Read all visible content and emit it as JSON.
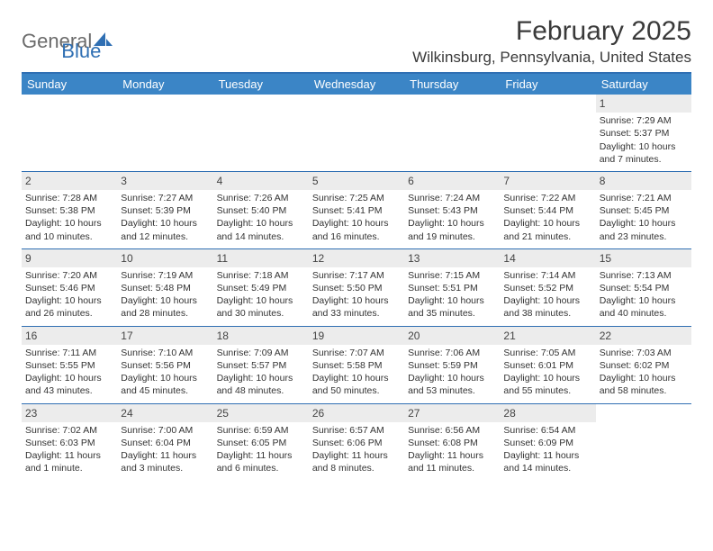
{
  "logo": {
    "part1": "General",
    "part2": "Blue"
  },
  "title": "February 2025",
  "location": "Wilkinsburg, Pennsylvania, United States",
  "colors": {
    "header_bar": "#3b85c6",
    "rule": "#2f6fb3",
    "daynum_bg": "#ececec",
    "text": "#333333",
    "logo_gray": "#6b6b6b",
    "logo_blue": "#2f6fb3"
  },
  "day_headers": [
    "Sunday",
    "Monday",
    "Tuesday",
    "Wednesday",
    "Thursday",
    "Friday",
    "Saturday"
  ],
  "weeks": [
    [
      {
        "empty": true
      },
      {
        "empty": true
      },
      {
        "empty": true
      },
      {
        "empty": true
      },
      {
        "empty": true
      },
      {
        "empty": true
      },
      {
        "num": "1",
        "sunrise": "Sunrise: 7:29 AM",
        "sunset": "Sunset: 5:37 PM",
        "day1": "Daylight: 10 hours",
        "day2": "and 7 minutes."
      }
    ],
    [
      {
        "num": "2",
        "sunrise": "Sunrise: 7:28 AM",
        "sunset": "Sunset: 5:38 PM",
        "day1": "Daylight: 10 hours",
        "day2": "and 10 minutes."
      },
      {
        "num": "3",
        "sunrise": "Sunrise: 7:27 AM",
        "sunset": "Sunset: 5:39 PM",
        "day1": "Daylight: 10 hours",
        "day2": "and 12 minutes."
      },
      {
        "num": "4",
        "sunrise": "Sunrise: 7:26 AM",
        "sunset": "Sunset: 5:40 PM",
        "day1": "Daylight: 10 hours",
        "day2": "and 14 minutes."
      },
      {
        "num": "5",
        "sunrise": "Sunrise: 7:25 AM",
        "sunset": "Sunset: 5:41 PM",
        "day1": "Daylight: 10 hours",
        "day2": "and 16 minutes."
      },
      {
        "num": "6",
        "sunrise": "Sunrise: 7:24 AM",
        "sunset": "Sunset: 5:43 PM",
        "day1": "Daylight: 10 hours",
        "day2": "and 19 minutes."
      },
      {
        "num": "7",
        "sunrise": "Sunrise: 7:22 AM",
        "sunset": "Sunset: 5:44 PM",
        "day1": "Daylight: 10 hours",
        "day2": "and 21 minutes."
      },
      {
        "num": "8",
        "sunrise": "Sunrise: 7:21 AM",
        "sunset": "Sunset: 5:45 PM",
        "day1": "Daylight: 10 hours",
        "day2": "and 23 minutes."
      }
    ],
    [
      {
        "num": "9",
        "sunrise": "Sunrise: 7:20 AM",
        "sunset": "Sunset: 5:46 PM",
        "day1": "Daylight: 10 hours",
        "day2": "and 26 minutes."
      },
      {
        "num": "10",
        "sunrise": "Sunrise: 7:19 AM",
        "sunset": "Sunset: 5:48 PM",
        "day1": "Daylight: 10 hours",
        "day2": "and 28 minutes."
      },
      {
        "num": "11",
        "sunrise": "Sunrise: 7:18 AM",
        "sunset": "Sunset: 5:49 PM",
        "day1": "Daylight: 10 hours",
        "day2": "and 30 minutes."
      },
      {
        "num": "12",
        "sunrise": "Sunrise: 7:17 AM",
        "sunset": "Sunset: 5:50 PM",
        "day1": "Daylight: 10 hours",
        "day2": "and 33 minutes."
      },
      {
        "num": "13",
        "sunrise": "Sunrise: 7:15 AM",
        "sunset": "Sunset: 5:51 PM",
        "day1": "Daylight: 10 hours",
        "day2": "and 35 minutes."
      },
      {
        "num": "14",
        "sunrise": "Sunrise: 7:14 AM",
        "sunset": "Sunset: 5:52 PM",
        "day1": "Daylight: 10 hours",
        "day2": "and 38 minutes."
      },
      {
        "num": "15",
        "sunrise": "Sunrise: 7:13 AM",
        "sunset": "Sunset: 5:54 PM",
        "day1": "Daylight: 10 hours",
        "day2": "and 40 minutes."
      }
    ],
    [
      {
        "num": "16",
        "sunrise": "Sunrise: 7:11 AM",
        "sunset": "Sunset: 5:55 PM",
        "day1": "Daylight: 10 hours",
        "day2": "and 43 minutes."
      },
      {
        "num": "17",
        "sunrise": "Sunrise: 7:10 AM",
        "sunset": "Sunset: 5:56 PM",
        "day1": "Daylight: 10 hours",
        "day2": "and 45 minutes."
      },
      {
        "num": "18",
        "sunrise": "Sunrise: 7:09 AM",
        "sunset": "Sunset: 5:57 PM",
        "day1": "Daylight: 10 hours",
        "day2": "and 48 minutes."
      },
      {
        "num": "19",
        "sunrise": "Sunrise: 7:07 AM",
        "sunset": "Sunset: 5:58 PM",
        "day1": "Daylight: 10 hours",
        "day2": "and 50 minutes."
      },
      {
        "num": "20",
        "sunrise": "Sunrise: 7:06 AM",
        "sunset": "Sunset: 5:59 PM",
        "day1": "Daylight: 10 hours",
        "day2": "and 53 minutes."
      },
      {
        "num": "21",
        "sunrise": "Sunrise: 7:05 AM",
        "sunset": "Sunset: 6:01 PM",
        "day1": "Daylight: 10 hours",
        "day2": "and 55 minutes."
      },
      {
        "num": "22",
        "sunrise": "Sunrise: 7:03 AM",
        "sunset": "Sunset: 6:02 PM",
        "day1": "Daylight: 10 hours",
        "day2": "and 58 minutes."
      }
    ],
    [
      {
        "num": "23",
        "sunrise": "Sunrise: 7:02 AM",
        "sunset": "Sunset: 6:03 PM",
        "day1": "Daylight: 11 hours",
        "day2": "and 1 minute."
      },
      {
        "num": "24",
        "sunrise": "Sunrise: 7:00 AM",
        "sunset": "Sunset: 6:04 PM",
        "day1": "Daylight: 11 hours",
        "day2": "and 3 minutes."
      },
      {
        "num": "25",
        "sunrise": "Sunrise: 6:59 AM",
        "sunset": "Sunset: 6:05 PM",
        "day1": "Daylight: 11 hours",
        "day2": "and 6 minutes."
      },
      {
        "num": "26",
        "sunrise": "Sunrise: 6:57 AM",
        "sunset": "Sunset: 6:06 PM",
        "day1": "Daylight: 11 hours",
        "day2": "and 8 minutes."
      },
      {
        "num": "27",
        "sunrise": "Sunrise: 6:56 AM",
        "sunset": "Sunset: 6:08 PM",
        "day1": "Daylight: 11 hours",
        "day2": "and 11 minutes."
      },
      {
        "num": "28",
        "sunrise": "Sunrise: 6:54 AM",
        "sunset": "Sunset: 6:09 PM",
        "day1": "Daylight: 11 hours",
        "day2": "and 14 minutes."
      },
      {
        "empty": true
      }
    ]
  ]
}
